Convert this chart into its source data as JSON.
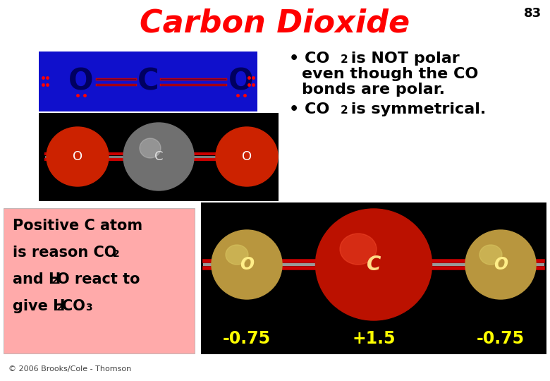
{
  "title": "Carbon Dioxide",
  "title_color": "#FF0000",
  "title_fontsize": 32,
  "page_number": "83",
  "background_color": "#FFFFFF",
  "lewis_bg": "#1010CC",
  "molecule_bg": "#000000",
  "bottom_bg": "#000000",
  "pink_box_bg": "#FFAAAA",
  "charges": [
    "-0.75",
    "+1.5",
    "-0.75"
  ],
  "charge_color": "#FFFF00",
  "copyright": "© 2006 Brooks/Cole - Thomson"
}
